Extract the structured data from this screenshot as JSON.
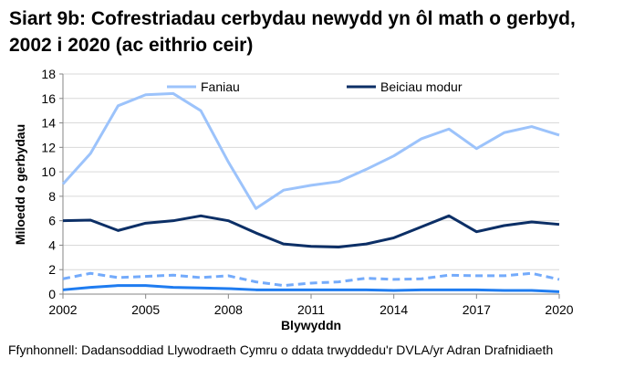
{
  "chart_data": {
    "type": "line",
    "title": "Siart 9b: Cofrestriadau cerbydau newydd yn ôl math o gerbyd, 2002 i 2020 (ac eithrio ceir)",
    "xlabel": "Blywyddn",
    "ylabel": "Miloedd o gerbydau",
    "source": "Ffynhonnell: Dadansoddiad Llywodraeth Cymru o ddata trwyddedu'r DVLA/yr Adran Drafnidiaeth",
    "x": [
      2002,
      2003,
      2004,
      2005,
      2006,
      2007,
      2008,
      2009,
      2010,
      2011,
      2012,
      2013,
      2014,
      2015,
      2016,
      2017,
      2018,
      2019,
      2020
    ],
    "x_ticks": [
      "2002",
      "2005",
      "2008",
      "2011",
      "2014",
      "2017",
      "2020"
    ],
    "y_ticks": [
      "0",
      "2",
      "4",
      "6",
      "8",
      "10",
      "12",
      "14",
      "16",
      "18"
    ],
    "ylim": [
      0,
      18
    ],
    "xlim": [
      2002,
      2020
    ],
    "grid": "horizontal",
    "legend_position": "top",
    "series": [
      {
        "name": "Faniau",
        "color": "#9cc3fb",
        "dash": false,
        "values": [
          9.0,
          11.5,
          15.4,
          16.3,
          16.4,
          15.0,
          10.8,
          7.0,
          8.5,
          8.9,
          9.2,
          10.2,
          11.3,
          12.7,
          13.5,
          11.9,
          13.2,
          13.7,
          13.0
        ]
      },
      {
        "name": "Beiciau modur",
        "color": "#0c2f66",
        "dash": false,
        "values": [
          6.0,
          6.05,
          5.2,
          5.8,
          6.0,
          6.4,
          6.0,
          5.0,
          4.1,
          3.9,
          3.85,
          4.1,
          4.6,
          5.5,
          6.4,
          5.1,
          5.6,
          5.9,
          5.7
        ]
      },
      {
        "color": "#74abfb",
        "dash": true,
        "values": [
          1.25,
          1.7,
          1.35,
          1.45,
          1.55,
          1.35,
          1.5,
          1.0,
          0.7,
          0.9,
          1.0,
          1.3,
          1.2,
          1.25,
          1.55,
          1.5,
          1.5,
          1.7,
          1.2
        ]
      },
      {
        "color": "#1f7cf0",
        "dash": false,
        "values": [
          0.35,
          0.55,
          0.7,
          0.7,
          0.55,
          0.5,
          0.45,
          0.35,
          0.35,
          0.35,
          0.35,
          0.35,
          0.3,
          0.35,
          0.35,
          0.35,
          0.3,
          0.3,
          0.2
        ]
      }
    ]
  }
}
